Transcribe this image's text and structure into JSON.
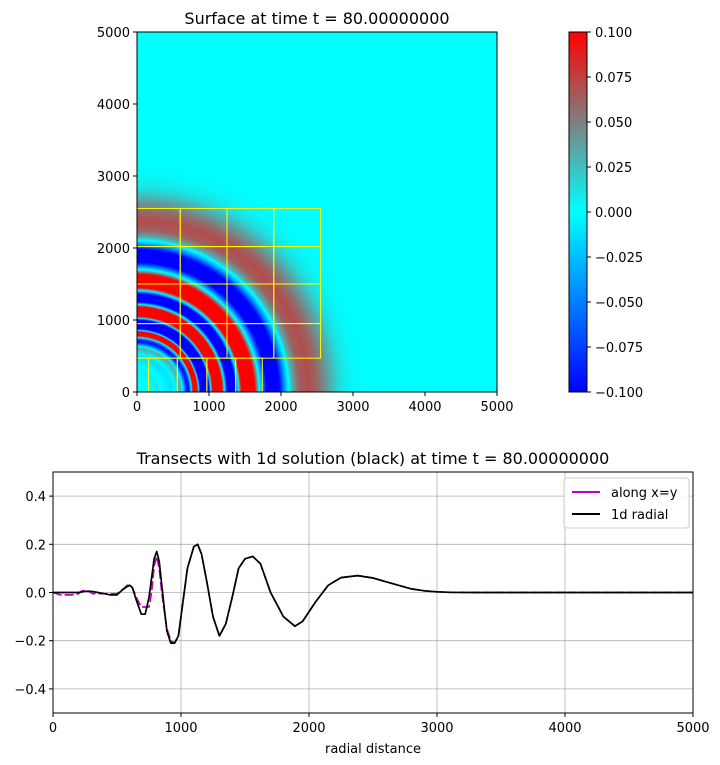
{
  "chart_data": [
    {
      "type": "heatmap",
      "title": "Surface at time t =    80.00000000",
      "xlim": [
        0,
        5000
      ],
      "ylim": [
        0,
        5000
      ],
      "x_ticks": [
        "0",
        "1000",
        "2000",
        "3000",
        "4000",
        "5000"
      ],
      "y_ticks": [
        "0",
        "1000",
        "2000",
        "3000",
        "4000",
        "5000"
      ],
      "grid_color": "#ffff00",
      "colorbar": {
        "min": -0.1,
        "max": 0.1,
        "colors": [
          "#0000ff",
          "#00ffff",
          "#ff0000"
        ],
        "ticks": [
          "0.100",
          "0.075",
          "0.050",
          "0.025",
          "0.000",
          "−0.025",
          "−0.050",
          "−0.075",
          "−0.100"
        ]
      }
    },
    {
      "type": "line",
      "title": "Transects with 1d solution (black) at time t =    80.00000000",
      "xlabel": "radial distance",
      "ylabel": "",
      "xlim": [
        0,
        5000
      ],
      "ylim": [
        -0.5,
        0.5
      ],
      "x_ticks": [
        "0",
        "1000",
        "2000",
        "3000",
        "4000",
        "5000"
      ],
      "y_ticks": [
        "0.4",
        "0.2",
        "0.0",
        "−0.2",
        "−0.4"
      ],
      "grid": true,
      "legend_position": "top-right",
      "series": [
        {
          "name": "along x=y",
          "color": "#bf00bf",
          "dashed": true,
          "x": [
            0,
            60,
            100,
            150,
            200,
            220,
            250,
            280,
            310,
            340,
            400,
            450,
            500,
            540,
            580,
            600,
            620,
            650,
            690,
            720,
            750,
            770,
            790,
            810,
            830,
            850,
            870,
            890,
            920,
            950,
            980,
            1000,
            1050,
            1100,
            1130,
            1160,
            1200,
            1250,
            1300,
            1350,
            1400,
            1450,
            1500,
            1560,
            1620,
            1700,
            1800,
            1890,
            1950,
            2050,
            2150,
            2250,
            2380,
            2500,
            2600,
            2700,
            2800,
            2900,
            3000,
            3100,
            3300,
            4000,
            5000
          ],
          "y": [
            0,
            -0.01,
            -0.01,
            -0.01,
            -0.005,
            0.005,
            0.01,
            0.005,
            -0.005,
            -0.005,
            -0.005,
            -0.005,
            -0.005,
            0.01,
            0.03,
            0.03,
            0.02,
            -0.02,
            -0.06,
            -0.06,
            -0.06,
            0.0,
            0.11,
            0.15,
            0.1,
            0.0,
            -0.08,
            -0.15,
            -0.2,
            -0.21,
            -0.18,
            -0.1,
            0.1,
            0.19,
            0.2,
            0.16,
            0.05,
            -0.1,
            -0.18,
            -0.13,
            -0.02,
            0.1,
            0.14,
            0.15,
            0.12,
            0.0,
            -0.1,
            -0.14,
            -0.12,
            -0.04,
            0.03,
            0.062,
            0.07,
            0.06,
            0.045,
            0.03,
            0.015,
            0.007,
            0.003,
            0.001,
            0,
            0,
            0
          ]
        },
        {
          "name": "1d radial",
          "color": "#000000",
          "dashed": false,
          "x": [
            0,
            100,
            200,
            250,
            300,
            350,
            400,
            450,
            500,
            540,
            580,
            600,
            620,
            650,
            690,
            720,
            750,
            770,
            790,
            810,
            830,
            850,
            870,
            890,
            920,
            950,
            980,
            1000,
            1050,
            1100,
            1130,
            1160,
            1200,
            1250,
            1300,
            1350,
            1400,
            1450,
            1500,
            1560,
            1620,
            1700,
            1800,
            1890,
            1950,
            2050,
            2150,
            2250,
            2380,
            2500,
            2600,
            2700,
            2800,
            2900,
            3000,
            3100,
            3300,
            4000,
            5000
          ],
          "y": [
            0,
            0,
            0,
            0.005,
            0.005,
            0,
            -0.005,
            -0.01,
            -0.01,
            0.01,
            0.025,
            0.03,
            0.02,
            -0.03,
            -0.09,
            -0.09,
            -0.02,
            0.06,
            0.14,
            0.17,
            0.13,
            0.03,
            -0.07,
            -0.16,
            -0.21,
            -0.21,
            -0.18,
            -0.1,
            0.1,
            0.19,
            0.2,
            0.16,
            0.05,
            -0.1,
            -0.18,
            -0.13,
            -0.02,
            0.1,
            0.14,
            0.15,
            0.12,
            0.0,
            -0.1,
            -0.14,
            -0.12,
            -0.04,
            0.03,
            0.062,
            0.07,
            0.06,
            0.045,
            0.03,
            0.015,
            0.007,
            0.003,
            0.001,
            0,
            0,
            0
          ]
        }
      ]
    }
  ]
}
